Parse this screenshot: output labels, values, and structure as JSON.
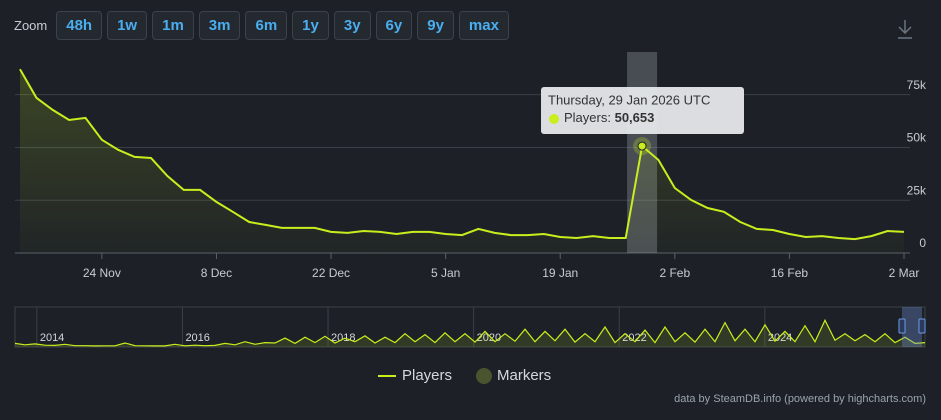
{
  "zoom": {
    "label": "Zoom",
    "buttons": [
      "48h",
      "1w",
      "1m",
      "3m",
      "6m",
      "1y",
      "3y",
      "6y",
      "9y",
      "max"
    ]
  },
  "chart_data": {
    "type": "line",
    "categories": [
      null,
      null,
      null,
      null,
      null,
      "24 Nov",
      null,
      null,
      null,
      null,
      null,
      null,
      "8 Dec",
      null,
      null,
      null,
      null,
      null,
      null,
      "22 Dec",
      null,
      null,
      null,
      null,
      null,
      null,
      "5 Jan",
      null,
      null,
      null,
      null,
      null,
      null,
      "19 Jan",
      null,
      null,
      null,
      null,
      null,
      null,
      "2 Feb",
      null,
      null,
      null,
      null,
      null,
      null,
      "16 Feb",
      null,
      null,
      null,
      null,
      null,
      null,
      "2 Mar"
    ],
    "series": [
      {
        "name": "Players",
        "color": "#c9ee1d",
        "values": [
          87000,
          73500,
          67800,
          63000,
          64000,
          53600,
          48900,
          45500,
          45000,
          36500,
          29900,
          29900,
          24200,
          19500,
          14700,
          13300,
          11900,
          11900,
          11900,
          10000,
          9500,
          10400,
          10000,
          9000,
          10000,
          10000,
          9000,
          8500,
          11400,
          9500,
          8500,
          8500,
          9000,
          7600,
          7100,
          8000,
          7100,
          7100,
          50653,
          44100,
          30800,
          25100,
          21300,
          19500,
          14700,
          11400,
          10900,
          9000,
          7600,
          8000,
          7100,
          6600,
          8000,
          10400,
          10000
        ],
        "value_labels": [
          null,
          null,
          null,
          null,
          null,
          null,
          null,
          null,
          null,
          null,
          null,
          null,
          null,
          null,
          null,
          null,
          null,
          null,
          null,
          null,
          null,
          null,
          null,
          null,
          null,
          null,
          null,
          null,
          null,
          null,
          null,
          null,
          null,
          null,
          null,
          null,
          null,
          null,
          "50,653",
          null,
          null,
          null,
          null,
          null,
          null,
          null,
          null,
          null,
          null,
          null,
          null,
          null,
          null,
          null,
          null
        ]
      }
    ],
    "markers_series": {
      "name": "Markers",
      "color": "#4a5530"
    },
    "tooltip_title": "Thursday, 29 Jan 2026 UTC",
    "tooltip_series_label": "Players:",
    "ylim": [
      0,
      90000
    ],
    "yticks": [
      0,
      {
        "value": 25000,
        "label": "25k"
      },
      {
        "value": 50000,
        "label": "50k"
      },
      {
        "value": 75000,
        "label": "75k"
      }
    ],
    "grid": true,
    "navigator": {
      "xlim": [
        2013.7,
        2026.2
      ],
      "xticks": [
        2014,
        2016,
        2018,
        2020,
        2022,
        2024
      ],
      "ylim": [
        0,
        90000
      ],
      "values": [
        8000,
        5000,
        7000,
        4000,
        3500,
        6000,
        3000,
        3000,
        2500,
        2800,
        2600,
        9000,
        3000,
        2800,
        2500,
        2400,
        6000,
        2600,
        4000,
        3000,
        3500,
        8000,
        5000,
        12000,
        6000,
        10000,
        9000,
        20000,
        8000,
        22000,
        10000,
        24000,
        9000,
        20000,
        12000,
        25000,
        9000,
        22000,
        10000,
        30000,
        12000,
        28000,
        10000,
        32000,
        12000,
        30000,
        11000,
        35000,
        12000,
        30000,
        13000,
        40000,
        12000,
        35000,
        14000,
        40000,
        11000,
        30000,
        12000,
        45000,
        10000,
        30000,
        12000,
        38000,
        10000,
        45000,
        12000,
        32000,
        11000,
        40000,
        12000,
        55000,
        14000,
        40000,
        12000,
        50000,
        13000,
        35000,
        12000,
        48000,
        12000,
        60000,
        15000,
        30000,
        14000,
        28000,
        12000,
        30000,
        10000,
        22000,
        8000,
        10000
      ]
    },
    "credit": "data by SteamDB.info (powered by highcharts.com)"
  }
}
